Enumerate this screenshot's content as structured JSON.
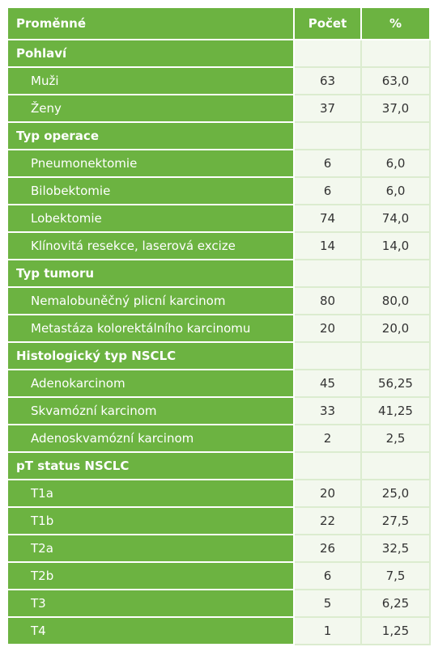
{
  "table": {
    "header": [
      "Proměnné",
      "Počet",
      "%"
    ],
    "sections": [
      {
        "title": "Pohlaví",
        "rows": [
          [
            "Muži",
            "63",
            "63,0"
          ],
          [
            "Ženy",
            "37",
            "37,0"
          ]
        ]
      },
      {
        "title": "Typ operace",
        "rows": [
          [
            "Pneumonektomie",
            "6",
            "6,0"
          ],
          [
            "Bilobektomie",
            "6",
            "6,0"
          ],
          [
            "Lobektomie",
            "74",
            "74,0"
          ],
          [
            "Klínovitá resekce, laserová excize",
            "14",
            "14,0"
          ]
        ]
      },
      {
        "title": "Typ tumoru",
        "rows": [
          [
            "Nemalobuněčný plicní karcinom",
            "80",
            "80,0"
          ],
          [
            "Metastáza kolorektálního karcinomu",
            "20",
            "20,0"
          ]
        ]
      },
      {
        "title": "Histologický typ NSCLC",
        "rows": [
          [
            "Adenokarcinom",
            "45",
            "56,25"
          ],
          [
            "Skvamózní karcinom",
            "33",
            "41,25"
          ],
          [
            "Adenoskvamózní karcinom",
            "2",
            "2,5"
          ]
        ]
      },
      {
        "title": "pT status NSCLC",
        "rows": [
          [
            "T1a",
            "20",
            "25,0"
          ],
          [
            "T1b",
            "22",
            "27,5"
          ],
          [
            "T2a",
            "26",
            "32,5"
          ],
          [
            "T2b",
            "6",
            "7,5"
          ],
          [
            "T3",
            "5",
            "6,25"
          ],
          [
            "T4",
            "1",
            "1,25"
          ]
        ]
      }
    ]
  }
}
